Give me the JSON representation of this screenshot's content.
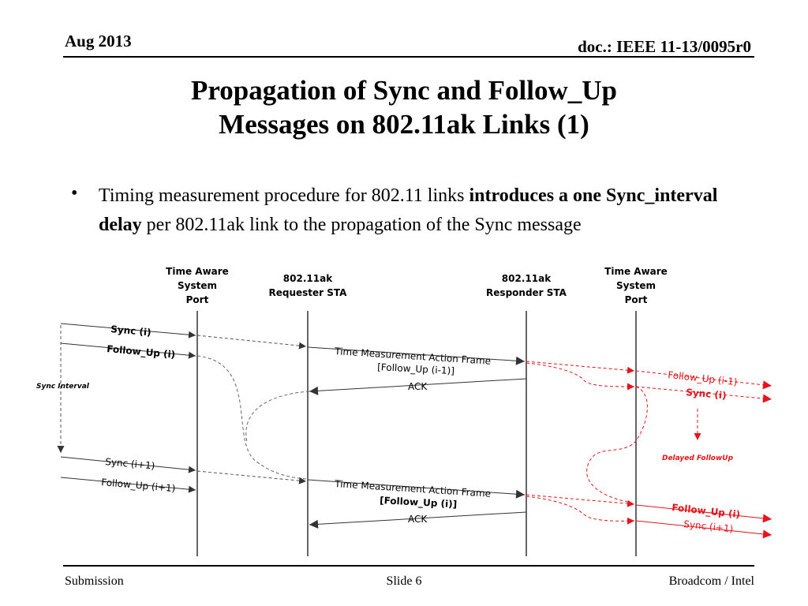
{
  "header": {
    "date": "Aug 2013",
    "doc": "doc.: IEEE 11-13/0095r0"
  },
  "title": {
    "line1": "Propagation of Sync and Follow_Up",
    "line2": "Messages on 802.11ak Links (1)"
  },
  "bullet": {
    "symbol": "•",
    "text_a": "Timing measurement procedure for 802.11 links ",
    "text_b": "introduces a one Sync_interval delay",
    "text_c": " per 802.11ak link to the propagation of the Sync message"
  },
  "diagram": {
    "col1": [
      "Time Aware",
      "System",
      "Port"
    ],
    "col2": [
      "802.11ak",
      "Requester STA"
    ],
    "col3": [
      "802.11ak",
      "Responder STA"
    ],
    "col4": [
      "Time Aware",
      "System",
      "Port"
    ],
    "sync_i": "Sync (i)",
    "followup_i": "Follow_Up (i)",
    "sync_interval": "Sync Interval",
    "sync_i1": "Sync (i+1)",
    "followup_i1": "Follow_Up (i+1)",
    "tm1_line1": "Time Measurement Action Frame",
    "tm1_line2": "[Follow_Up (i-1)]",
    "ack1": "ACK",
    "tm2_line1": "Time Measurement Action Frame",
    "tm2_line2": "[Follow_Up (i)]",
    "ack2": "ACK",
    "r_followup_im1": "Follow_Up (i-1)",
    "r_sync_i": "Sync (i)",
    "delayed": "Delayed FollowUp",
    "r_followup_i": "Follow_Up (i)",
    "r_sync_i1": "Sync (i+1)",
    "accent": "#e8141b"
  },
  "footer": {
    "left": "Submission",
    "center": "Slide 6",
    "right": "Broadcom / Intel"
  }
}
